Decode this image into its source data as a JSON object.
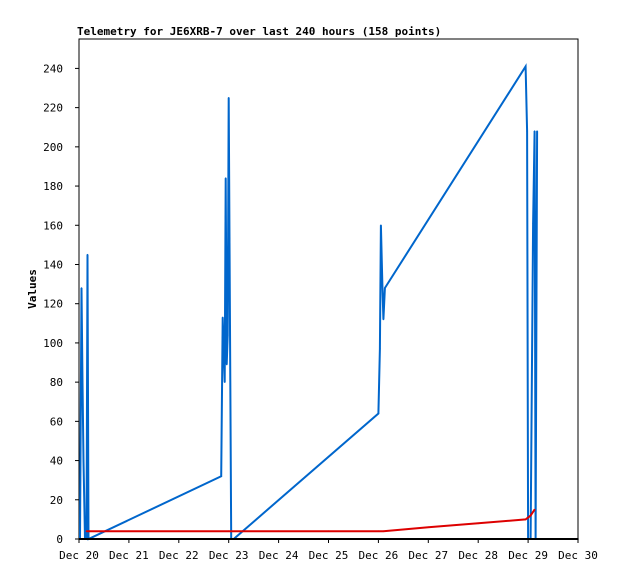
{
  "chart_data": {
    "type": "line",
    "title": "Telemetry for JE6XRB-7 over last 240 hours (158 points)",
    "xlabel": "",
    "ylabel": "Values",
    "x_ticks": [
      "Dec 20",
      "Dec 21",
      "Dec 22",
      "Dec 23",
      "Dec 24",
      "Dec 25",
      "Dec 26",
      "Dec 27",
      "Dec 28",
      "Dec 29",
      "Dec 30"
    ],
    "y_ticks": [
      0,
      20,
      40,
      60,
      80,
      100,
      120,
      140,
      160,
      180,
      200,
      220,
      240
    ],
    "xlim_days": [
      0,
      10
    ],
    "ylim": [
      0,
      255
    ],
    "grid": false,
    "legend": "none",
    "colors": {
      "blue": "#0066cc",
      "red": "#dd0000",
      "black": "#000000",
      "axis": "#000000",
      "background": "#ffffff"
    },
    "series": [
      {
        "color": "#0066cc",
        "x_days": [
          0.02,
          0.05,
          0.07,
          0.09,
          0.12,
          0.15,
          0.17,
          0.19,
          2.85,
          2.88,
          2.92,
          2.94,
          2.96,
          2.98,
          3.0,
          3.05,
          3.1,
          6.0,
          6.03,
          6.05,
          6.08,
          6.1,
          6.13,
          8.95,
          8.98,
          9.0,
          9.05,
          9.1,
          9.13,
          9.15,
          9.18
        ],
        "values": [
          0,
          128,
          80,
          40,
          0,
          0,
          145,
          0,
          32,
          113,
          80,
          184,
          89,
          104,
          225,
          0,
          0,
          64,
          97,
          160,
          129,
          112,
          128,
          241,
          208,
          0,
          0,
          161,
          208,
          0,
          208
        ]
      },
      {
        "color": "#dd0000",
        "x_days": [
          0.15,
          1.0,
          2.0,
          3.0,
          4.0,
          5.0,
          6.0,
          6.1,
          7.0,
          8.0,
          8.95,
          9.05,
          9.13
        ],
        "values": [
          4,
          4,
          4,
          4,
          4,
          4,
          4,
          4,
          6,
          8,
          10,
          12,
          15
        ]
      },
      {
        "color": "#000000",
        "x_days": [
          0,
          10
        ],
        "values": [
          0,
          0
        ]
      }
    ]
  }
}
